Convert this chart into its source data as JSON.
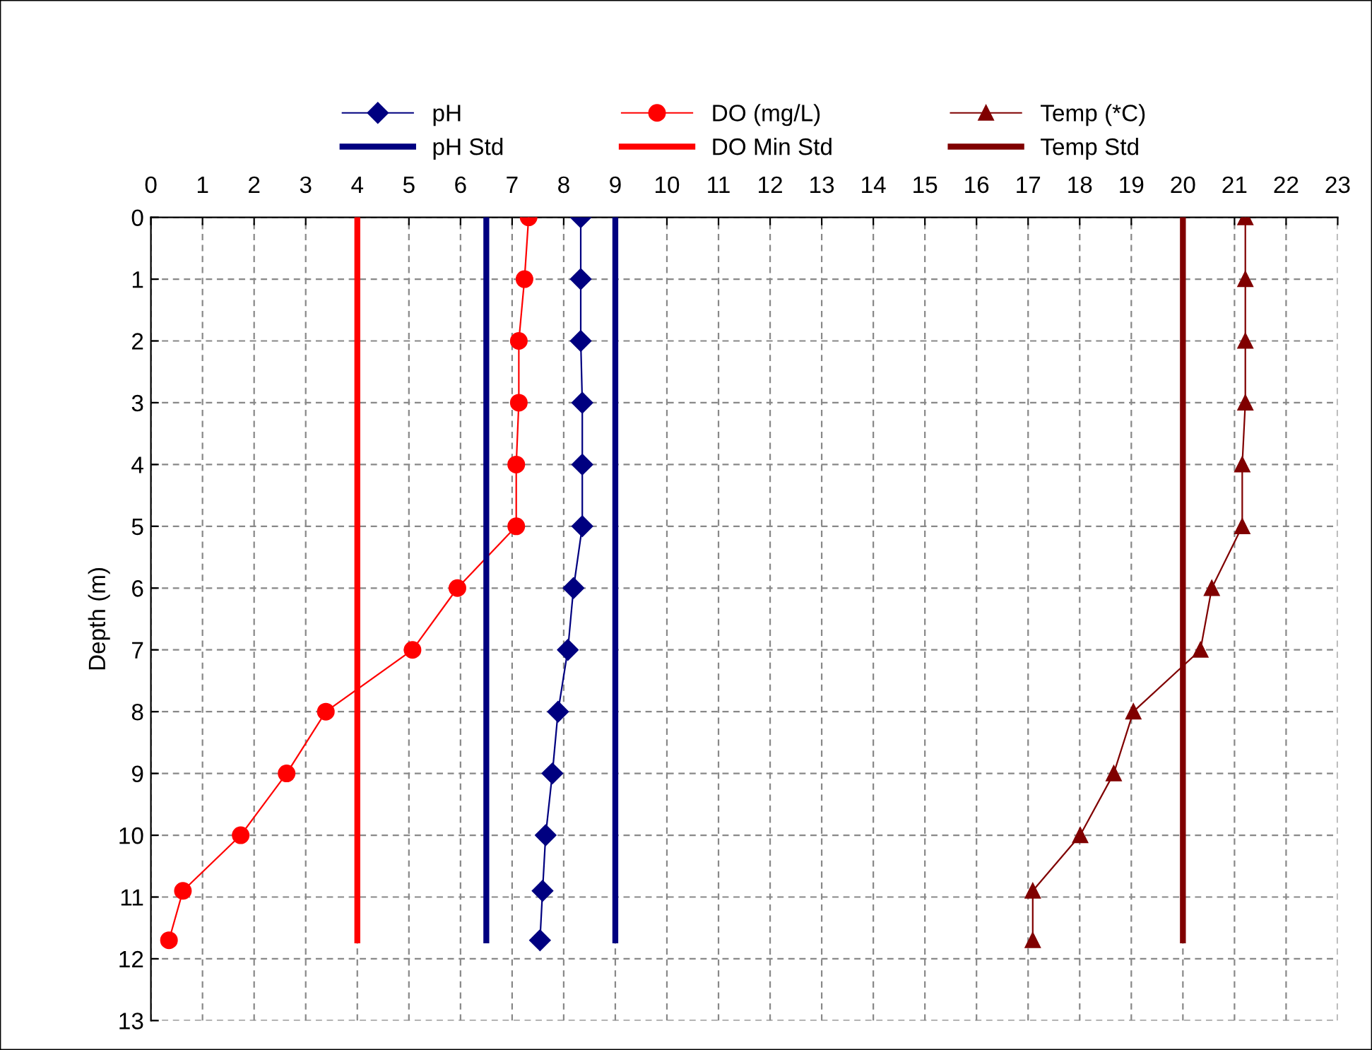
{
  "chart_data": {
    "type": "line",
    "ylabel": "Depth (m)",
    "xlim": [
      0,
      23
    ],
    "xticks": [
      0,
      1,
      2,
      3,
      4,
      5,
      6,
      7,
      8,
      9,
      10,
      11,
      12,
      13,
      14,
      15,
      16,
      17,
      18,
      19,
      20,
      21,
      22,
      23
    ],
    "ylim": [
      13,
      0
    ],
    "yticks": [
      0,
      1,
      2,
      3,
      4,
      5,
      6,
      7,
      8,
      9,
      10,
      11,
      12,
      13
    ],
    "grid": true,
    "legend": "top",
    "line_style": "solid",
    "series": [
      {
        "name": "pH",
        "color": "#000080",
        "marker": "diamond",
        "x": [
          8.33,
          8.33,
          8.33,
          8.36,
          8.36,
          8.36,
          8.19,
          8.08,
          7.89,
          7.78,
          7.65,
          7.59,
          7.54
        ],
        "values": [
          0,
          1,
          2,
          3,
          4,
          5,
          6,
          7,
          8,
          9,
          10,
          10.9,
          11.7
        ]
      },
      {
        "name": "DO (mg/L)",
        "color": "#ff0000",
        "marker": "circle",
        "x": [
          7.32,
          7.24,
          7.13,
          7.13,
          7.08,
          7.08,
          5.94,
          5.07,
          3.39,
          2.63,
          1.74,
          0.62,
          0.35
        ],
        "values": [
          0,
          1,
          2,
          3,
          4,
          5,
          6,
          7,
          8,
          9,
          10,
          10.9,
          11.7
        ]
      },
      {
        "name": "Temp (*C)",
        "color": "#800000",
        "marker": "triangle",
        "x": [
          21.21,
          21.21,
          21.21,
          21.21,
          21.15,
          21.15,
          20.56,
          20.34,
          19.04,
          18.66,
          18.01,
          17.09,
          17.09
        ],
        "values": [
          0,
          1,
          2,
          3,
          4,
          5,
          6,
          7,
          8,
          9,
          10,
          10.9,
          11.7
        ]
      },
      {
        "name": "pH Std",
        "color": "#000080",
        "marker": "none",
        "x": [
          6.5,
          6.5,
          null,
          9,
          9
        ],
        "values": [
          0,
          11.7,
          null,
          0,
          11.7
        ]
      },
      {
        "name": "DO Min Std",
        "color": "#ff0000",
        "marker": "none",
        "x": [
          4,
          4
        ],
        "values": [
          0,
          11.7
        ]
      },
      {
        "name": "Temp Std",
        "color": "#800000",
        "marker": "none",
        "x": [
          20,
          20
        ],
        "values": [
          0,
          11.7
        ]
      }
    ]
  }
}
